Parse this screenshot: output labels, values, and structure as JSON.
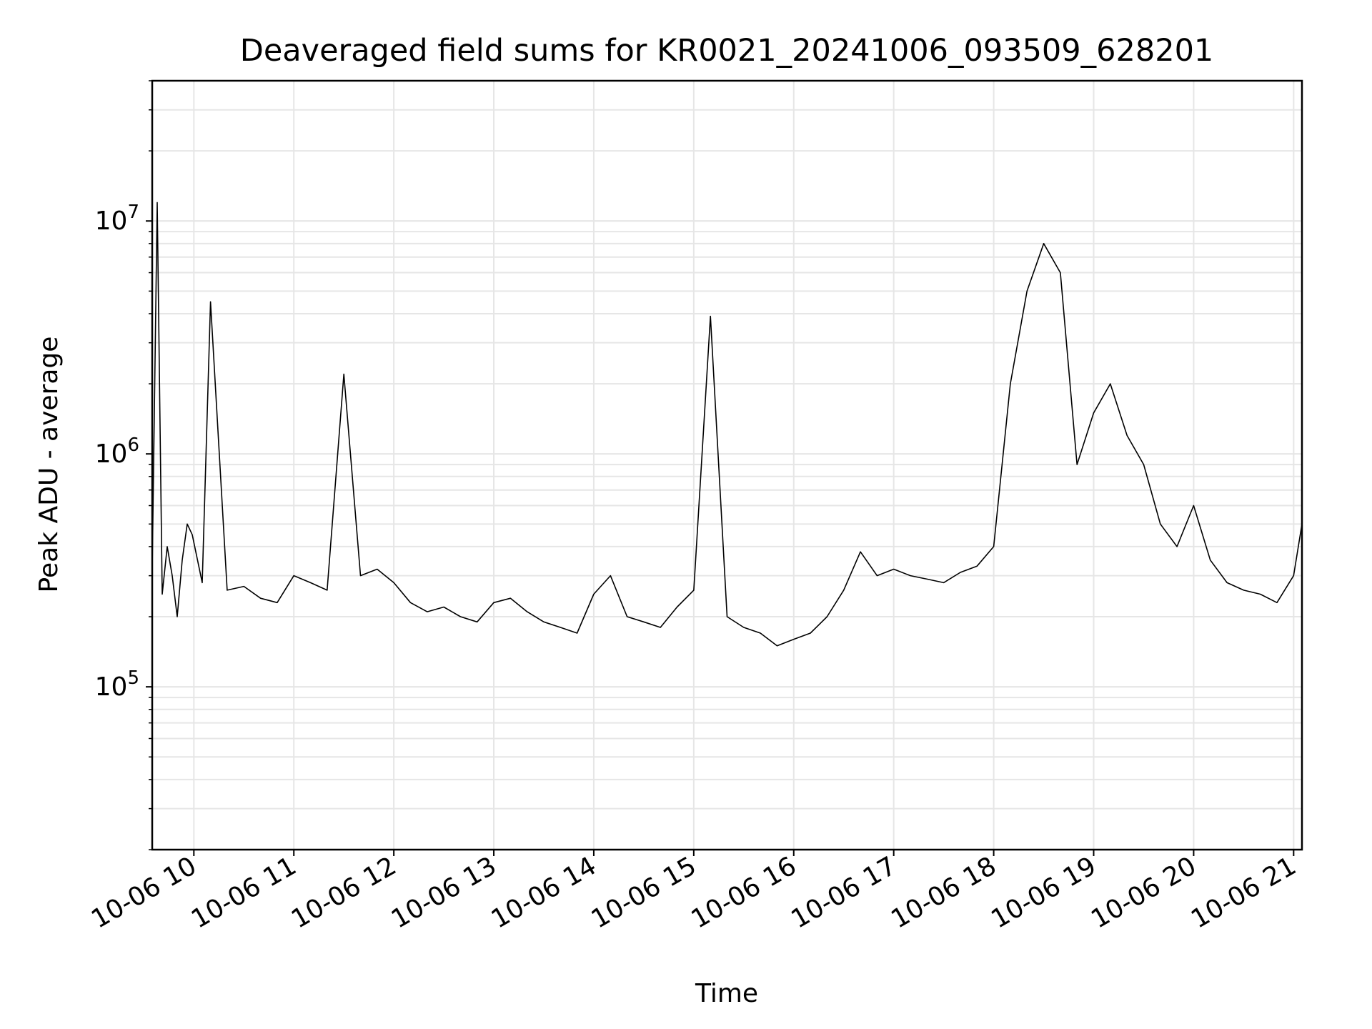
{
  "chart_data": {
    "type": "line",
    "title": "Deaveraged field sums for KR0021_20241006_093509_628201",
    "xlabel": "Time",
    "ylabel": "Peak ADU - average",
    "y_scale": "log",
    "grid": true,
    "line_color": "#000000",
    "grid_color": "#e6e6e6",
    "xlim": [
      "2024-10-06 09:35",
      "2024-10-06 21:05"
    ],
    "ylim": [
      20000,
      40000000
    ],
    "x_ticks": [
      "2024-10-06 10:00",
      "2024-10-06 11:00",
      "2024-10-06 12:00",
      "2024-10-06 13:00",
      "2024-10-06 14:00",
      "2024-10-06 15:00",
      "2024-10-06 16:00",
      "2024-10-06 17:00",
      "2024-10-06 18:00",
      "2024-10-06 19:00",
      "2024-10-06 20:00",
      "2024-10-06 21:00"
    ],
    "x_tick_labels": [
      "10-06 10",
      "10-06 11",
      "10-06 12",
      "10-06 13",
      "10-06 14",
      "10-06 15",
      "10-06 16",
      "10-06 17",
      "10-06 18",
      "10-06 19",
      "10-06 20",
      "10-06 21"
    ],
    "y_ticks": [
      100000,
      1000000,
      10000000
    ],
    "y_tick_labels": [
      {
        "base": "10",
        "exp": "5"
      },
      {
        "base": "10",
        "exp": "6"
      },
      {
        "base": "10",
        "exp": "7"
      }
    ],
    "series": [
      {
        "x": [
          "2024-10-06 09:35",
          "2024-10-06 09:38",
          "2024-10-06 09:41",
          "2024-10-06 09:44",
          "2024-10-06 09:47",
          "2024-10-06 09:50",
          "2024-10-06 09:53",
          "2024-10-06 09:56",
          "2024-10-06 09:59",
          "2024-10-06 10:05",
          "2024-10-06 10:10",
          "2024-10-06 10:20",
          "2024-10-06 10:30",
          "2024-10-06 10:40",
          "2024-10-06 10:50",
          "2024-10-06 11:00",
          "2024-10-06 11:10",
          "2024-10-06 11:20",
          "2024-10-06 11:30",
          "2024-10-06 11:40",
          "2024-10-06 11:50",
          "2024-10-06 12:00",
          "2024-10-06 12:10",
          "2024-10-06 12:20",
          "2024-10-06 12:30",
          "2024-10-06 12:40",
          "2024-10-06 12:50",
          "2024-10-06 13:00",
          "2024-10-06 13:10",
          "2024-10-06 13:20",
          "2024-10-06 13:30",
          "2024-10-06 13:40",
          "2024-10-06 13:50",
          "2024-10-06 14:00",
          "2024-10-06 14:10",
          "2024-10-06 14:20",
          "2024-10-06 14:30",
          "2024-10-06 14:40",
          "2024-10-06 14:50",
          "2024-10-06 15:00",
          "2024-10-06 15:10",
          "2024-10-06 15:20",
          "2024-10-06 15:30",
          "2024-10-06 15:40",
          "2024-10-06 15:50",
          "2024-10-06 16:00",
          "2024-10-06 16:10",
          "2024-10-06 16:20",
          "2024-10-06 16:30",
          "2024-10-06 16:40",
          "2024-10-06 16:50",
          "2024-10-06 17:00",
          "2024-10-06 17:10",
          "2024-10-06 17:20",
          "2024-10-06 17:30",
          "2024-10-06 17:40",
          "2024-10-06 17:50",
          "2024-10-06 18:00",
          "2024-10-06 18:10",
          "2024-10-06 18:20",
          "2024-10-06 18:30",
          "2024-10-06 18:40",
          "2024-10-06 18:50",
          "2024-10-06 19:00",
          "2024-10-06 19:10",
          "2024-10-06 19:20",
          "2024-10-06 19:30",
          "2024-10-06 19:40",
          "2024-10-06 19:50",
          "2024-10-06 20:00",
          "2024-10-06 20:10",
          "2024-10-06 20:20",
          "2024-10-06 20:30",
          "2024-10-06 20:40",
          "2024-10-06 20:50",
          "2024-10-06 21:00",
          "2024-10-06 21:05"
        ],
        "y": [
          320000,
          12000000,
          250000,
          400000,
          300000,
          200000,
          350000,
          500000,
          450000,
          280000,
          4500000,
          260000,
          270000,
          240000,
          230000,
          300000,
          280000,
          260000,
          2200000,
          300000,
          320000,
          280000,
          230000,
          210000,
          220000,
          200000,
          190000,
          230000,
          240000,
          210000,
          190000,
          180000,
          170000,
          250000,
          300000,
          200000,
          190000,
          180000,
          220000,
          260000,
          3900000,
          200000,
          180000,
          170000,
          150000,
          160000,
          170000,
          200000,
          260000,
          380000,
          300000,
          320000,
          300000,
          290000,
          280000,
          310000,
          330000,
          400000,
          2000000,
          5000000,
          8000000,
          6000000,
          900000,
          1500000,
          2000000,
          1200000,
          900000,
          500000,
          400000,
          600000,
          350000,
          280000,
          260000,
          250000,
          230000,
          300000,
          500000
        ]
      }
    ]
  }
}
